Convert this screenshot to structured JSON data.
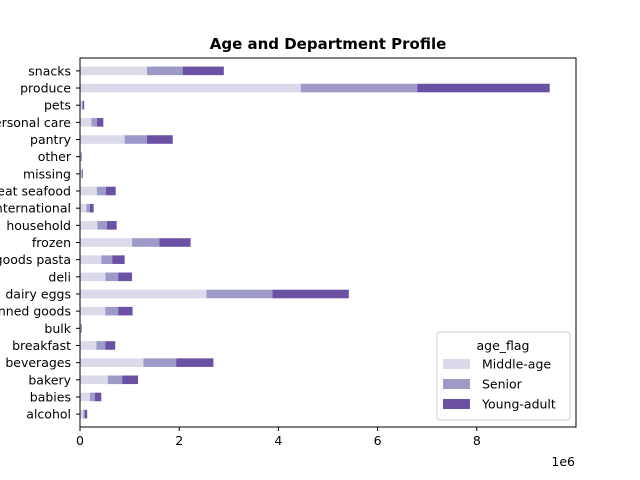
{
  "chart_data": {
    "type": "bar",
    "orientation": "horizontal",
    "stacked": true,
    "title": "Age and Department Profile",
    "xlabel": "",
    "ylabel": "",
    "x_offset_label": "1e6",
    "xlim": [
      0,
      10000000
    ],
    "x_ticks": [
      0,
      2000000,
      4000000,
      6000000,
      8000000
    ],
    "x_tick_labels": [
      "0",
      "2",
      "4",
      "6",
      "8"
    ],
    "grid": false,
    "legend": {
      "title": "age_flag",
      "position": "lower-right"
    },
    "categories": [
      "alcohol",
      "babies",
      "bakery",
      "beverages",
      "breakfast",
      "bulk",
      "canned goods",
      "dairy eggs",
      "deli",
      "dry goods pasta",
      "frozen",
      "household",
      "international",
      "meat seafood",
      "missing",
      "other",
      "pantry",
      "personal care",
      "pets",
      "produce",
      "snacks"
    ],
    "series": [
      {
        "name": "Middle-age",
        "color": "#dadaeb",
        "values": [
          65000,
          200000,
          560000,
          1280000,
          330000,
          15000,
          510000,
          2550000,
          510000,
          430000,
          1050000,
          350000,
          130000,
          340000,
          30000,
          15000,
          900000,
          230000,
          40000,
          4450000,
          1350000
        ]
      },
      {
        "name": "Senior",
        "color": "#9e9ac8",
        "values": [
          30000,
          100000,
          290000,
          660000,
          180000,
          8000,
          260000,
          1330000,
          260000,
          220000,
          550000,
          190000,
          70000,
          180000,
          15000,
          10000,
          450000,
          110000,
          20000,
          2350000,
          720000
        ]
      },
      {
        "name": "Young-adult",
        "color": "#6a51a3",
        "values": [
          50000,
          130000,
          320000,
          750000,
          200000,
          12000,
          290000,
          1540000,
          280000,
          250000,
          630000,
          200000,
          75000,
          200000,
          15000,
          10000,
          520000,
          130000,
          25000,
          2670000,
          830000
        ]
      }
    ]
  }
}
